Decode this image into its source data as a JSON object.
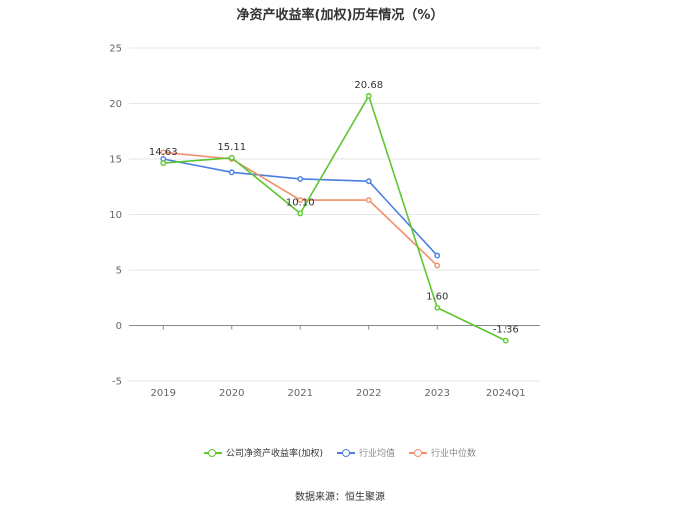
{
  "chart_data": {
    "type": "line",
    "title": "净资产收益率(加权)历年情况（%）",
    "categories": [
      "2019",
      "2020",
      "2021",
      "2022",
      "2023",
      "2024Q1"
    ],
    "ylim": [
      -5,
      25
    ],
    "yticks": [
      -5,
      0,
      5,
      10,
      15,
      20,
      25
    ],
    "grid": true,
    "legend_position": "bottom",
    "series": [
      {
        "name": "公司净资产收益率(加权)",
        "color": "#5cc72e",
        "values": [
          14.63,
          15.11,
          10.1,
          20.68,
          1.6,
          -1.36
        ],
        "labels": [
          "14.63",
          "15.11",
          "10.10",
          "20.68",
          "1.60",
          "-1.36"
        ]
      },
      {
        "name": "行业均值",
        "color": "#4a7fe0",
        "values": [
          15.0,
          13.8,
          13.2,
          13.0,
          6.3,
          null
        ]
      },
      {
        "name": "行业中位数",
        "color": "#f0906a",
        "values": [
          15.6,
          15.0,
          11.3,
          11.3,
          5.4,
          null
        ]
      }
    ]
  },
  "source": "数据来源：恒生聚源"
}
